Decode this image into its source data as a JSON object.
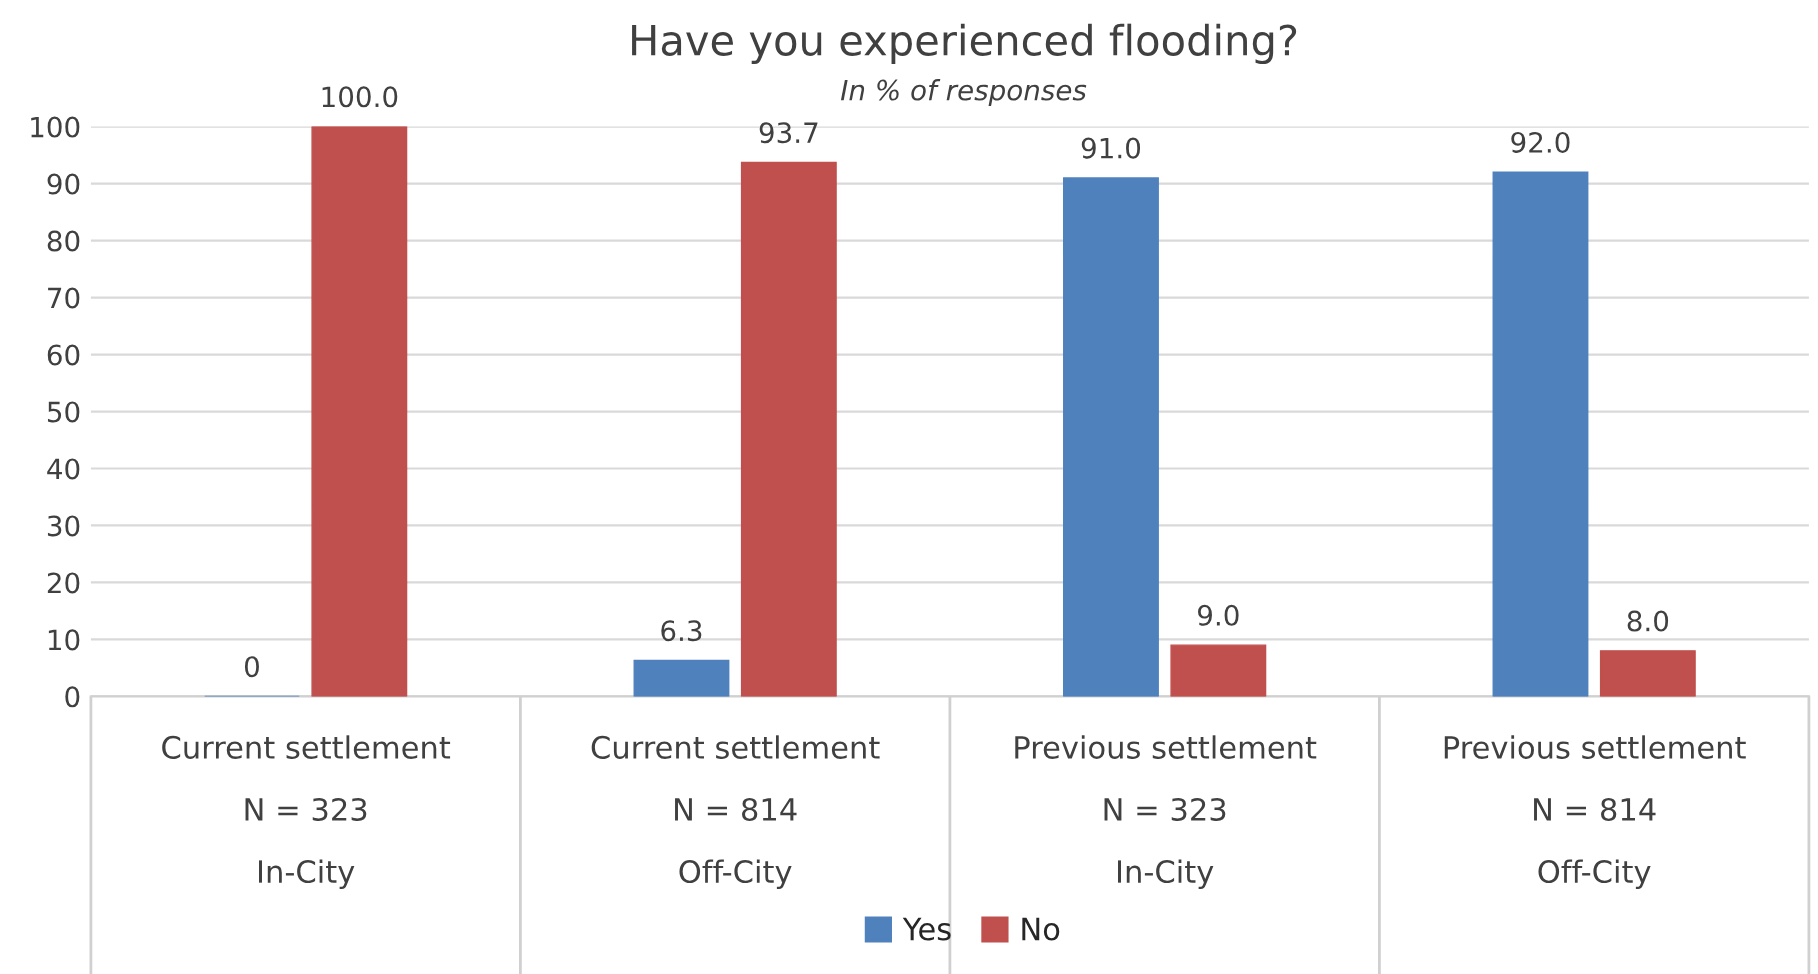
{
  "chart_data": {
    "type": "bar",
    "title": "Have you experienced flooding?",
    "subtitle": "In % of responses",
    "categories": [
      "Current settlement\nN = 323\nIn-City",
      "Current settlement\nN = 814\nOff-City",
      "Previous settlement\nN = 323\nIn-City",
      "Previous settlement\nN = 814\nOff-City"
    ],
    "series": [
      {
        "name": "Yes",
        "color": "#4f81bd",
        "values": [
          0,
          6.3,
          91.0,
          92.0
        ],
        "value_labels": [
          "0",
          "6.3",
          "91.0",
          "92.0"
        ]
      },
      {
        "name": "No",
        "color": "#c0504d",
        "values": [
          100.0,
          93.7,
          9.0,
          8.0
        ],
        "value_labels": [
          "100.0",
          "93.7",
          "9.0",
          "8.0"
        ]
      }
    ],
    "ylim": [
      0,
      100
    ],
    "yticks": [
      0,
      10,
      20,
      30,
      40,
      50,
      60,
      70,
      80,
      90,
      100
    ],
    "grid": "y",
    "legend": "bottom"
  }
}
